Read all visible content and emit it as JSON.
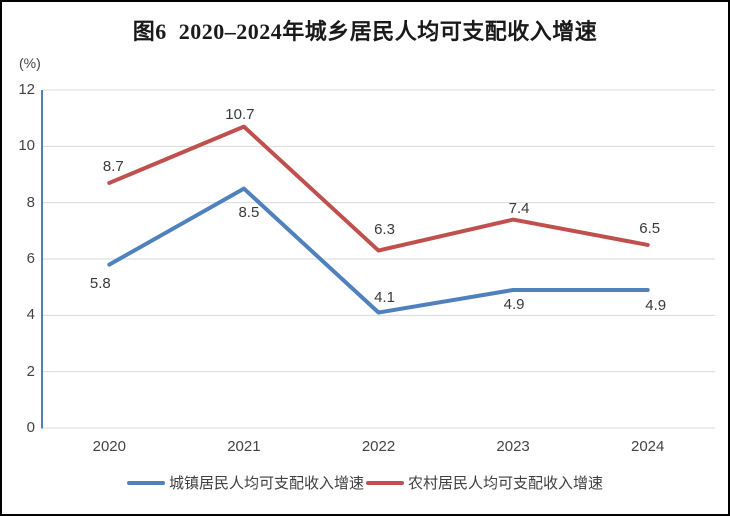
{
  "title": "图6  2020–2024年城乡居民人均可支配收入增速",
  "unit_label": "(%)",
  "colors": {
    "urban_line": "#4F81BD",
    "rural_line": "#C0504D",
    "gridline": "#D9D9D9",
    "axis_line": "#4F81BD",
    "tick_text": "#444444",
    "label_text": "#3A3A3A",
    "border": "#000000",
    "background": "#FFFFFF"
  },
  "chart_data": {
    "type": "line",
    "title": "图6  2020–2024年城乡居民人均可支配收入增速",
    "xlabel": "",
    "ylabel": "(%)",
    "categories": [
      "2020",
      "2021",
      "2022",
      "2023",
      "2024"
    ],
    "series": [
      {
        "name": "城镇居民人均可支配收入增速",
        "color": "#4F81BD",
        "values": [
          5.8,
          8.5,
          4.1,
          4.9,
          4.9
        ]
      },
      {
        "name": "农村居民人均可支配收入增速",
        "color": "#C0504D",
        "values": [
          8.7,
          10.7,
          6.3,
          7.4,
          6.5
        ]
      }
    ],
    "ylim": [
      0,
      12
    ],
    "ytick_step": 2,
    "yticks": [
      0,
      2,
      4,
      6,
      8,
      10,
      12
    ],
    "grid": true,
    "legend_position": "bottom",
    "data_labels_shown": true
  }
}
